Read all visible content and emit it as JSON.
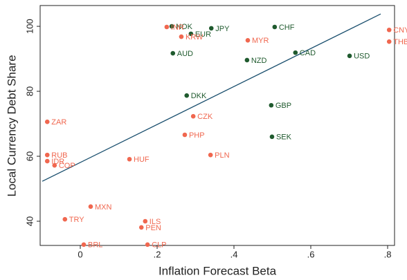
{
  "chart_data": {
    "type": "scatter",
    "x_label": "Inflation Forecast Beta",
    "y_label": "Local Currency Debt Share",
    "xlim": [
      -0.1045,
      0.818
    ],
    "ylim": [
      32.55,
      106.4
    ],
    "xticks": [
      0,
      {
        "value": 0.2,
        "label": ".2"
      },
      {
        "value": 0.4,
        "label": ".4"
      },
      {
        "value": 0.6,
        "label": ".6"
      },
      {
        "value": 0.8,
        "label": ".8"
      }
    ],
    "yticks": [
      40,
      60,
      80,
      100
    ],
    "series": [
      {
        "color": "#1f5a2e",
        "labels": [
          "NOK",
          "EUR",
          "JPY",
          "CHF",
          "AUD",
          "NZD",
          "CAD",
          "USD",
          "DKK",
          "GBP",
          "SEK"
        ],
        "x": [
          0.238,
          0.288,
          0.341,
          0.506,
          0.241,
          0.434,
          0.56,
          0.701,
          0.277,
          0.497,
          0.499
        ],
        "values": [
          100,
          97.7,
          99.4,
          99.8,
          91.7,
          89.6,
          91.9,
          90.9,
          78.7,
          75.7,
          66.0
        ]
      },
      {
        "color": "#f0674f",
        "labels": [
          "INR",
          "MYR",
          "KRW",
          "CNY",
          "THB",
          "CZK",
          "PHP",
          "PLN",
          "HUF",
          "ZAR",
          "RUB",
          "IDR",
          "COP",
          "MXN",
          "TRY",
          "ILS",
          "PEN",
          "BRL",
          "CLP"
        ],
        "x": [
          0.225,
          0.436,
          0.263,
          0.804,
          0.804,
          0.294,
          0.272,
          0.339,
          0.128,
          -0.086,
          -0.086,
          -0.086,
          -0.067,
          0.027,
          -0.04,
          0.169,
          0.159,
          0.009,
          0.175
        ],
        "values": [
          99.8,
          95.7,
          96.8,
          98.9,
          95.3,
          72.3,
          66.6,
          60.4,
          59.1,
          70.6,
          60.4,
          58.5,
          57.2,
          44.5,
          40.6,
          40.0,
          38.1,
          32.8,
          32.8
        ]
      }
    ],
    "fit_line": {
      "color": "#1a4f6e",
      "x": [
        -0.099,
        0.782
      ],
      "values": [
        52.3,
        103.8
      ]
    }
  }
}
